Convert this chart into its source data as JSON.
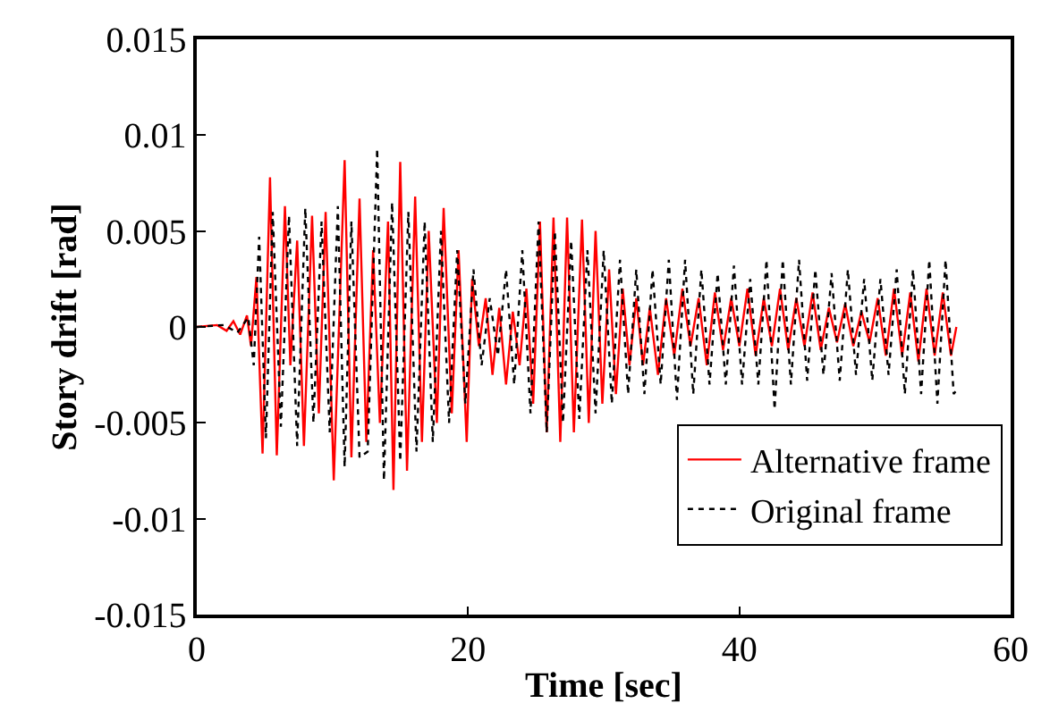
{
  "chart_data": {
    "type": "line",
    "xlabel": "Time [sec]",
    "ylabel": "Story drift [rad]",
    "xlim": [
      0,
      60
    ],
    "xticks": [
      0,
      20,
      40,
      60
    ],
    "ylim": [
      -0.015,
      0.015
    ],
    "yticks": [
      -0.015,
      -0.01,
      -0.005,
      0,
      0.005,
      0.01,
      0.015
    ],
    "legend": "bottom right",
    "series": [
      {
        "name": "Alternative frame",
        "color": "#ff0000",
        "line_style": "solid",
        "x": [
          0,
          1.5,
          2.2,
          2.7,
          3.2,
          3.7,
          4.0,
          4.4,
          4.85,
          5.4,
          5.9,
          6.5,
          6.9,
          7.4,
          7.9,
          8.5,
          9.0,
          9.5,
          10.1,
          10.9,
          11.4,
          12.0,
          12.5,
          13.0,
          13.5,
          14.1,
          14.5,
          15.0,
          15.5,
          16.1,
          16.6,
          17.1,
          17.7,
          18.2,
          18.8,
          19.3,
          19.9,
          20.3,
          20.8,
          21.3,
          21.8,
          22.3,
          22.8,
          23.3,
          23.8,
          24.3,
          24.8,
          25.3,
          25.8,
          26.3,
          26.8,
          27.3,
          27.8,
          28.4,
          28.9,
          29.4,
          29.9,
          30.4,
          30.9,
          31.4,
          31.9,
          32.4,
          32.9,
          33.4,
          34.0,
          34.6,
          35.2,
          35.8,
          36.4,
          37.0,
          37.6,
          38.2,
          38.8,
          39.4,
          40.0,
          40.6,
          41.2,
          41.8,
          42.4,
          43.0,
          43.6,
          44.2,
          44.8,
          45.4,
          46.0,
          46.6,
          47.2,
          47.8,
          48.4,
          49.0,
          49.6,
          50.2,
          50.8,
          51.4,
          52.0,
          52.6,
          53.2,
          53.8,
          54.4,
          55.0,
          55.6,
          56.0
        ],
        "values": [
          0,
          0.0001,
          -0.0002,
          0.0003,
          -0.0004,
          0.0006,
          -0.001,
          0.0026,
          -0.0066,
          0.0078,
          -0.0067,
          0.0063,
          -0.002,
          0.0045,
          -0.0062,
          0.0058,
          -0.0045,
          0.006,
          -0.008,
          0.0087,
          -0.0068,
          0.0067,
          -0.006,
          0.004,
          -0.005,
          0.0055,
          -0.0085,
          0.0086,
          -0.0075,
          0.0068,
          -0.006,
          0.005,
          -0.005,
          0.0062,
          -0.0045,
          0.004,
          -0.006,
          0.0025,
          -0.001,
          0.0015,
          -0.0025,
          0.001,
          -0.003,
          0.0008,
          -0.002,
          0.002,
          -0.004,
          0.0055,
          -0.0055,
          0.0057,
          -0.006,
          0.0057,
          -0.0055,
          0.0056,
          -0.005,
          0.005,
          -0.004,
          0.003,
          -0.0035,
          0.002,
          -0.002,
          0.0015,
          -0.002,
          0.001,
          -0.0025,
          0.0015,
          -0.0015,
          0.002,
          -0.001,
          0.0015,
          -0.002,
          0.0018,
          -0.0012,
          0.0015,
          -0.001,
          0.002,
          -0.0015,
          0.0015,
          -0.001,
          0.002,
          -0.0012,
          0.0015,
          -0.001,
          0.0018,
          -0.0012,
          0.001,
          -0.0008,
          0.0012,
          -0.001,
          0.0008,
          -0.0008,
          0.0015,
          -0.0015,
          0.002,
          -0.0015,
          0.0018,
          -0.0018,
          0.002,
          -0.0015,
          0.0018,
          -0.0015,
          0
        ]
      },
      {
        "name": "Original frame",
        "color": "#000000",
        "line_style": "dotted",
        "x": [
          0,
          2,
          3,
          3.8,
          4.2,
          4.6,
          5.1,
          5.6,
          6.2,
          6.8,
          7.4,
          8.0,
          8.6,
          9.2,
          9.8,
          10.4,
          10.9,
          11.4,
          12.0,
          12.6,
          13.3,
          13.8,
          14.4,
          15.0,
          15.6,
          16.2,
          16.8,
          17.4,
          18.0,
          18.6,
          19.2,
          19.8,
          20.4,
          21.0,
          21.6,
          22.2,
          22.8,
          23.4,
          24.0,
          24.6,
          25.2,
          25.8,
          26.4,
          27.0,
          27.6,
          28.2,
          28.8,
          29.4,
          30.0,
          30.6,
          31.2,
          31.8,
          32.4,
          33.0,
          33.6,
          34.2,
          34.8,
          35.4,
          36.0,
          36.6,
          37.2,
          37.8,
          38.4,
          39.0,
          39.6,
          40.2,
          40.8,
          41.4,
          42.0,
          42.6,
          43.2,
          43.8,
          44.4,
          45.0,
          45.6,
          46.2,
          46.8,
          47.4,
          48.0,
          48.6,
          49.2,
          49.8,
          50.4,
          51.0,
          51.6,
          52.2,
          52.8,
          53.4,
          54.0,
          54.6,
          55.2,
          55.8,
          56.0
        ],
        "values": [
          0,
          0.0001,
          -0.0003,
          0.0005,
          -0.002,
          0.0047,
          -0.0058,
          0.006,
          -0.0052,
          0.0058,
          -0.0062,
          0.0062,
          -0.005,
          0.0055,
          -0.0055,
          0.0063,
          -0.0073,
          0.0055,
          -0.0068,
          -0.0065,
          0.0093,
          -0.008,
          0.0065,
          -0.007,
          0.006,
          -0.0065,
          0.0055,
          -0.006,
          0.005,
          -0.005,
          0.004,
          -0.004,
          0.003,
          -0.002,
          0.0015,
          -0.0015,
          0.003,
          -0.003,
          0.004,
          -0.0045,
          0.0055,
          -0.0055,
          0.005,
          -0.005,
          0.0045,
          -0.0048,
          0.004,
          -0.0045,
          0.004,
          -0.004,
          0.0035,
          -0.0035,
          0.003,
          -0.0035,
          0.003,
          -0.003,
          0.0035,
          -0.0038,
          0.0035,
          -0.0035,
          0.003,
          -0.003,
          0.0028,
          -0.003,
          0.0032,
          -0.003,
          0.0025,
          -0.003,
          0.0035,
          -0.0043,
          0.0035,
          -0.003,
          0.0035,
          -0.0028,
          0.003,
          -0.0025,
          0.0028,
          -0.0028,
          0.003,
          -0.0025,
          0.0025,
          -0.0028,
          0.0025,
          -0.0025,
          0.003,
          -0.0035,
          0.003,
          -0.0035,
          0.0035,
          -0.004,
          0.0035,
          -0.0035,
          -0.0033
        ]
      }
    ]
  }
}
